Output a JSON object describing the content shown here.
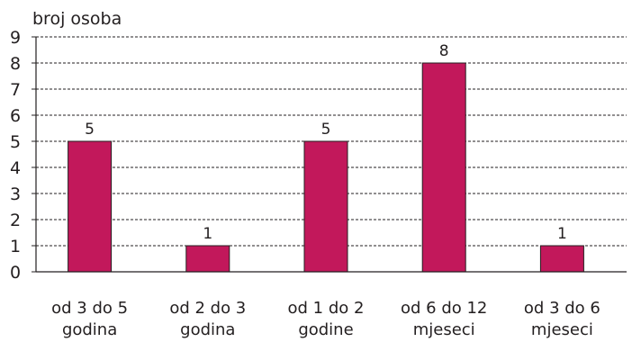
{
  "chart_data": {
    "type": "bar",
    "title": "",
    "ylabel": "broj osoba",
    "xlabel": "",
    "ylim": [
      0,
      9
    ],
    "yticks": [
      0,
      1,
      2,
      3,
      4,
      5,
      6,
      7,
      8,
      9
    ],
    "grid": true,
    "bar_color": "#c2185b",
    "categories": [
      [
        "od 3 do 5",
        "godina"
      ],
      [
        "od 2 do 3",
        "godina"
      ],
      [
        "od 1 do 2",
        "godine"
      ],
      [
        "od 6 do 12",
        "mjeseci"
      ],
      [
        "od 3 do 6",
        "mjeseci"
      ]
    ],
    "values": [
      5,
      1,
      5,
      8,
      1
    ]
  }
}
